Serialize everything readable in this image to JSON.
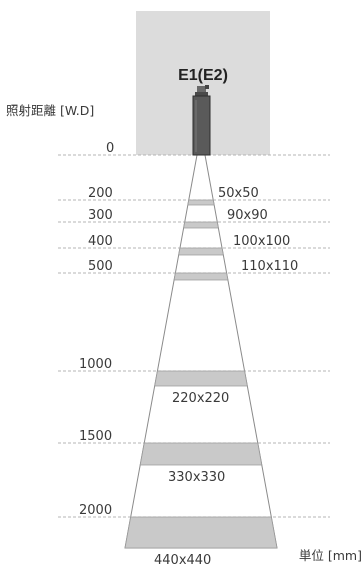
{
  "title": "E1(E2)",
  "axis_label": "照射距離 [W.D]",
  "unit_label": "単位 [mm]",
  "colors": {
    "box": "#dcdcdc",
    "sensor_body": "#5a5a5a",
    "band": "#c9c9c9",
    "cone_stroke": "#8a8a8a",
    "guide": "#b5b5b5",
    "text": "#3a3a3a"
  },
  "levels": [
    {
      "distance": "0",
      "size": ""
    },
    {
      "distance": "200",
      "size": "50x50"
    },
    {
      "distance": "300",
      "size": "90x90"
    },
    {
      "distance": "400",
      "size": "100x100"
    },
    {
      "distance": "500",
      "size": "110x110"
    },
    {
      "distance": "1000",
      "size": "220x220"
    },
    {
      "distance": "1500",
      "size": "330x330"
    },
    {
      "distance": "2000",
      "size": "440x440"
    }
  ]
}
